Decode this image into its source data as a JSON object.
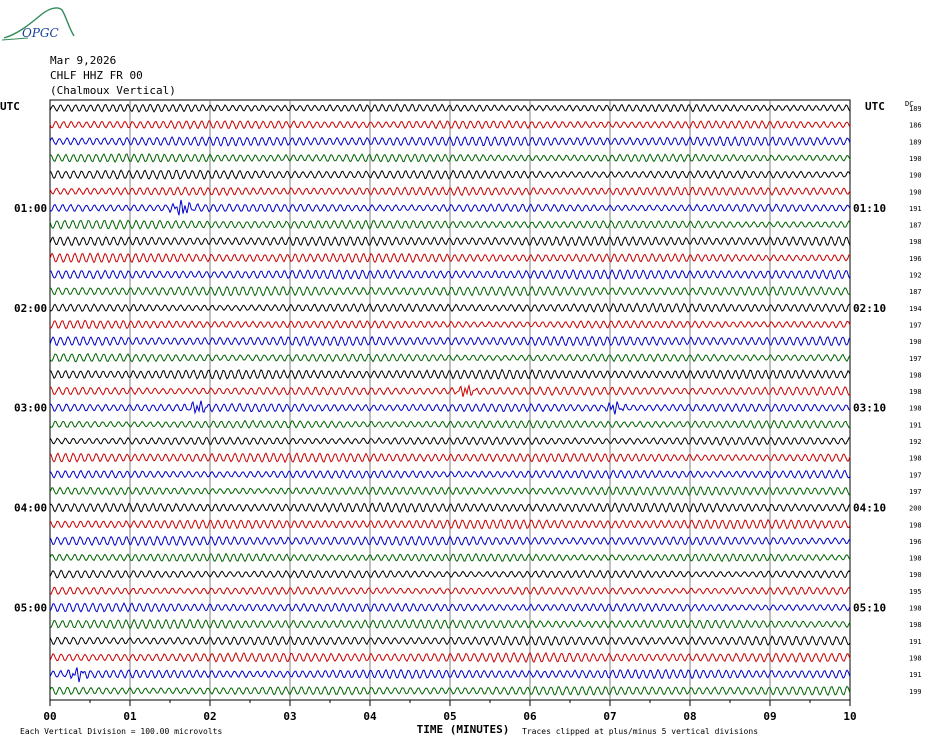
{
  "logo": {
    "text": "OPGC",
    "accent": "#1a3f9b",
    "hill_color": "#2e8b57"
  },
  "header": {
    "date": "Mar 9,2026",
    "channel": "CHLF HHZ FR 00",
    "station": "(Chalmoux Vertical)"
  },
  "chart_data": {
    "type": "line",
    "subtype": "helicorder",
    "left_axis_label": "UTC",
    "right_axis_label": "UTC",
    "dc_label": "DC",
    "xlabel": "TIME (MINUTES)",
    "xlim": [
      0,
      10
    ],
    "x_ticks": [
      "00",
      "01",
      "02",
      "03",
      "04",
      "05",
      "06",
      "07",
      "08",
      "09",
      "10"
    ],
    "grid": true,
    "trace_colors": [
      "#000000",
      "#cc0000",
      "#0000cc",
      "#006400"
    ],
    "left_time_labels": [
      {
        "row": 6,
        "text": "01:00"
      },
      {
        "row": 12,
        "text": "02:00"
      },
      {
        "row": 18,
        "text": "03:00"
      },
      {
        "row": 24,
        "text": "04:00"
      },
      {
        "row": 30,
        "text": "05:00"
      }
    ],
    "right_time_labels": [
      {
        "row": 6,
        "text": "01:10"
      },
      {
        "row": 12,
        "text": "02:10"
      },
      {
        "row": 18,
        "text": "03:10"
      },
      {
        "row": 24,
        "text": "04:10"
      },
      {
        "row": 30,
        "text": "05:10"
      }
    ],
    "dc_offsets": [
      189,
      186,
      189,
      190,
      190,
      190,
      191,
      187,
      198,
      196,
      192,
      187,
      194,
      197,
      190,
      197,
      198,
      198,
      198,
      191,
      192,
      198,
      197,
      197,
      200,
      198,
      196,
      198,
      190,
      195,
      198,
      198,
      191,
      198,
      191,
      199
    ],
    "events": [
      {
        "row": 6,
        "minute": 1.65,
        "amplitude": "large"
      },
      {
        "row": 17,
        "minute": 5.2,
        "amplitude": "medium"
      },
      {
        "row": 18,
        "minute": 1.85,
        "amplitude": "medium"
      },
      {
        "row": 18,
        "minute": 7.05,
        "amplitude": "medium"
      },
      {
        "row": 34,
        "minute": 0.35,
        "amplitude": "medium"
      }
    ],
    "footer_left": "Each Vertical Division =  100.00 microvolts",
    "footer_right": "Traces clipped at plus/minus 5 vertical divisions"
  }
}
